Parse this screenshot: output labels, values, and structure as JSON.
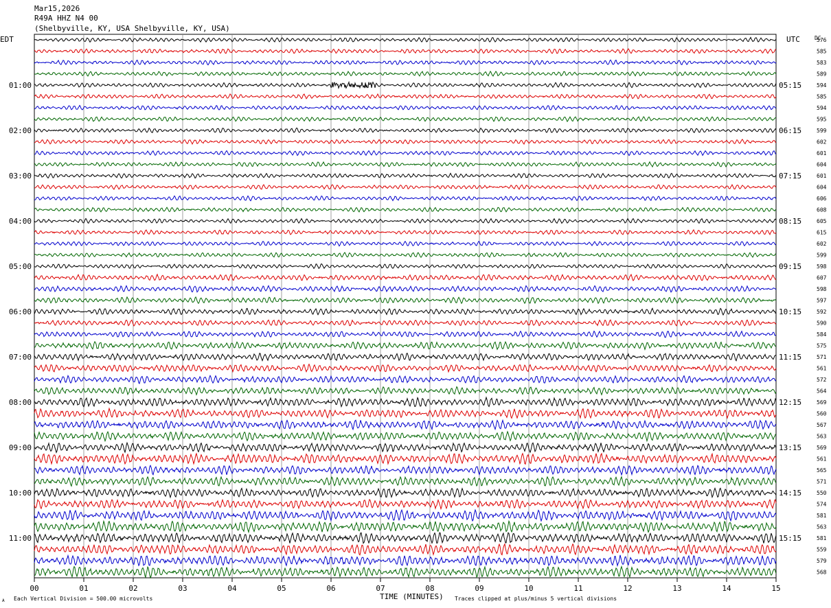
{
  "header": {
    "date": "Mar15,2026",
    "station": "R49A HHZ N4 00",
    "location": "(Shelbyville, KY, USA Shelbyville, KY, USA)"
  },
  "labels": {
    "left_tz": "EDT",
    "right_tz": "UTC",
    "dc_header": "DC",
    "xlabel": "TIME (MINUTES)",
    "footer_left": "Each Vertical Division =  500.00 microvolts",
    "footer_right": "Traces clipped at plus/minus 5 vertical divisions",
    "corner_mark": "A"
  },
  "colors": [
    "#000000",
    "#dd0000",
    "#0000cc",
    "#006600"
  ],
  "chart_data": {
    "type": "line",
    "title": "R49A HHZ N4 00",
    "x_ticks": [
      "00",
      "01",
      "02",
      "03",
      "04",
      "05",
      "06",
      "07",
      "08",
      "09",
      "10",
      "11",
      "12",
      "13",
      "14",
      "15"
    ],
    "xlim": [
      0,
      15
    ],
    "trace_minutes": 15,
    "traces_per_hour": 4,
    "left_hour_labels": [
      "01:00",
      "02:00",
      "03:00",
      "04:00",
      "05:00",
      "06:00",
      "07:00",
      "08:00",
      "09:00",
      "10:00",
      "11:00"
    ],
    "right_hour_labels": [
      "05:15",
      "06:15",
      "07:15",
      "08:15",
      "09:15",
      "10:15",
      "11:15",
      "12:15",
      "13:15",
      "14:15",
      "15:15"
    ],
    "dc_values": [
      "576",
      "585",
      "583",
      "589",
      "594",
      "585",
      "594",
      "595",
      "599",
      "602",
      "601",
      "604",
      "601",
      "604",
      "606",
      "608",
      "605",
      "615",
      "602",
      "599",
      "598",
      "607",
      "598",
      "597",
      "592",
      "590",
      "584",
      "575",
      "571",
      "561",
      "572",
      "564",
      "569",
      "560",
      "567",
      "563",
      "569",
      "561",
      "565",
      "571",
      "550",
      "574",
      "581",
      "563",
      "581",
      "559",
      "579",
      "568"
    ],
    "amplitudes": [
      3,
      3,
      3,
      3,
      3,
      3,
      3,
      3,
      3,
      3,
      3,
      3,
      3,
      3,
      3,
      3,
      3,
      3,
      3,
      3,
      3,
      4,
      4,
      4,
      4,
      4,
      4,
      5,
      5,
      5,
      5,
      5,
      6,
      6,
      6,
      6,
      6,
      7,
      6,
      6,
      6,
      6,
      7,
      7,
      7,
      7,
      7,
      7
    ],
    "event": {
      "trace": 4,
      "start_min": 6.0,
      "end_min": 6.9
    }
  }
}
